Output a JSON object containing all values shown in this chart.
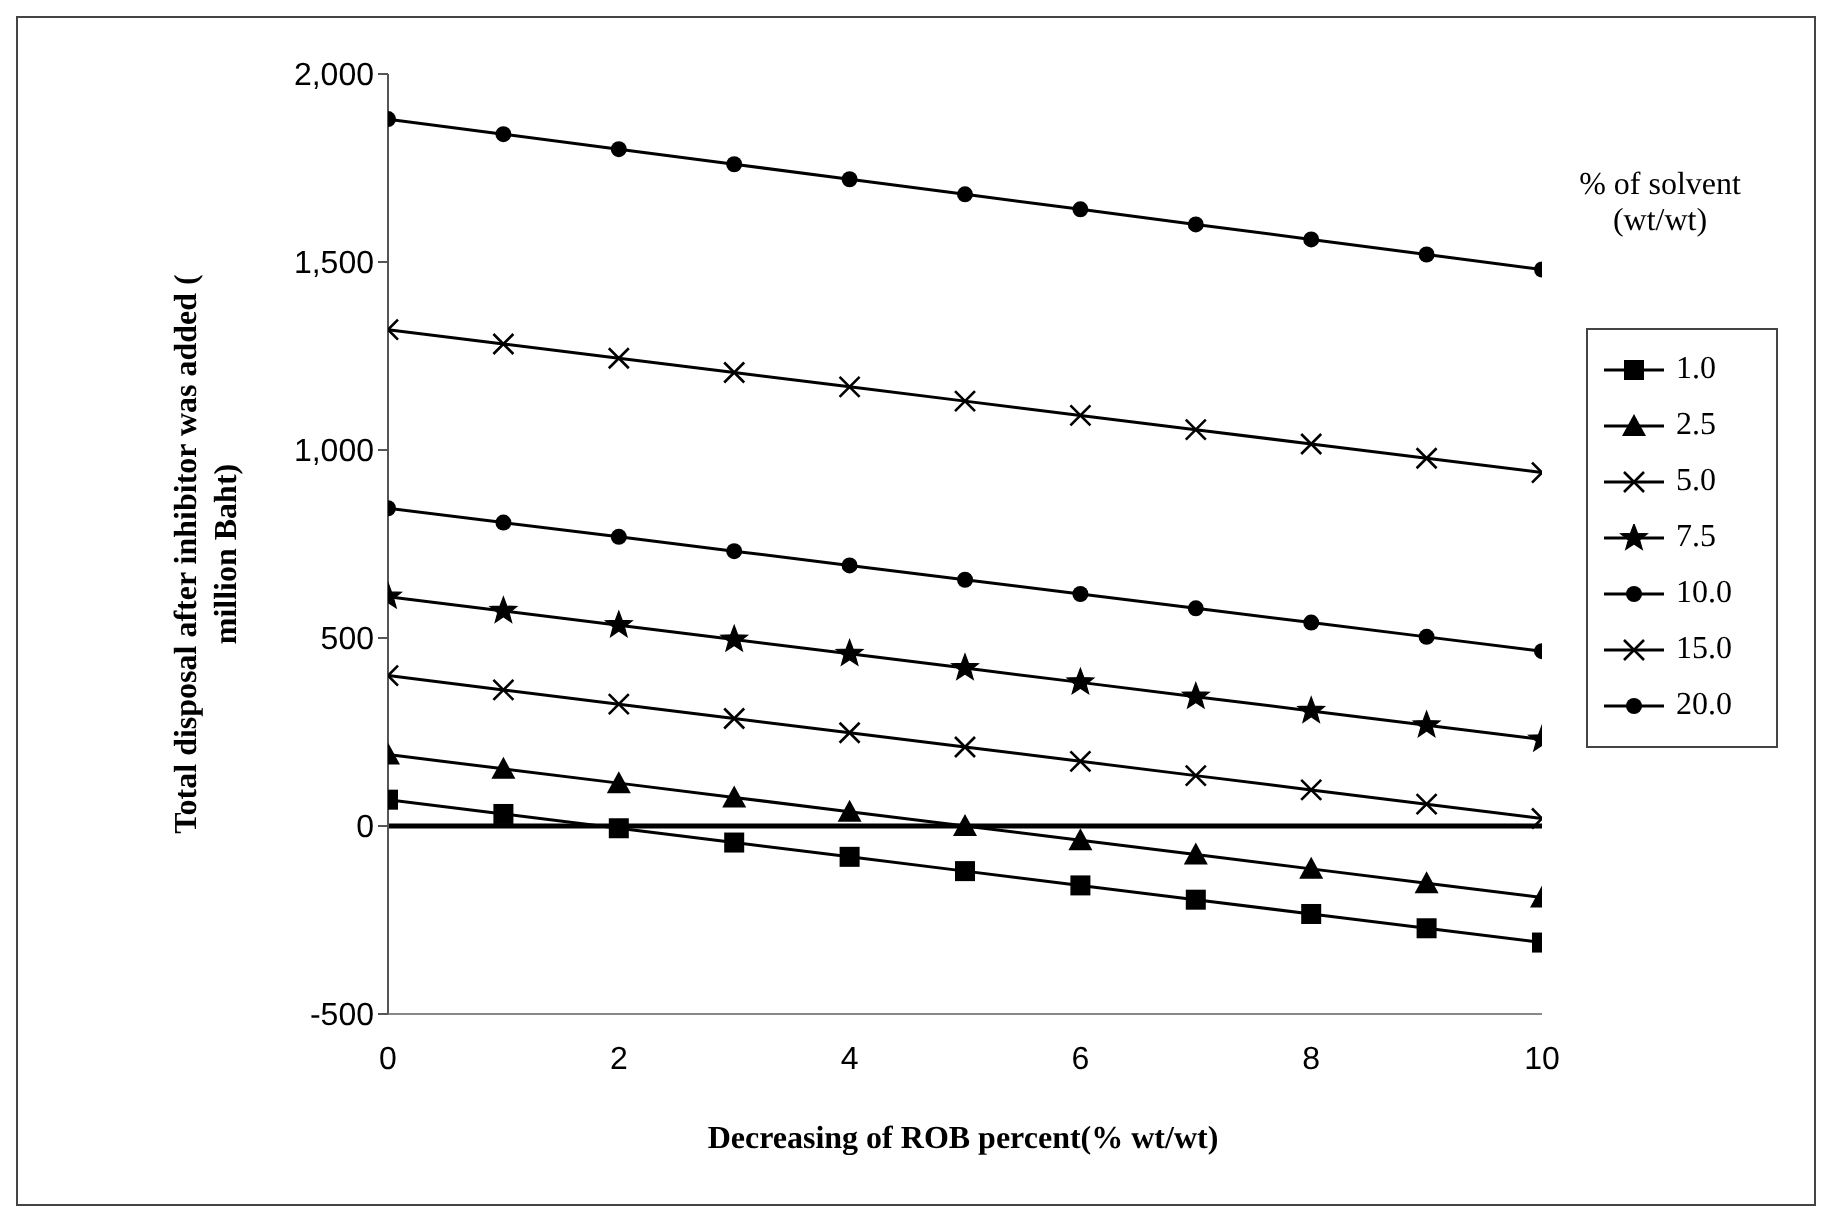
{
  "chart_data": {
    "type": "line",
    "xlabel": "Decreasing of ROB percent(% wt/wt)",
    "ylabel": "Total disposal after inhibitor was added ( million Baht)",
    "legend_title": "% of solvent (wt/wt)",
    "legend": "right",
    "grid": false,
    "x": [
      0,
      1,
      2,
      3,
      4,
      5,
      6,
      7,
      8,
      9,
      10
    ],
    "xlim": [
      0,
      10
    ],
    "xticks": [
      0,
      2,
      4,
      6,
      8,
      10
    ],
    "ylim": [
      -500,
      2000
    ],
    "yticks": [
      -500,
      0,
      500,
      {
        "value": 1000,
        "label": "1,000"
      },
      {
        "value": 1500,
        "label": "1,500"
      },
      {
        "value": 2000,
        "label": "2,000"
      }
    ],
    "ref_lines": [
      {
        "axis": "y",
        "value": 0,
        "color": "#000000"
      }
    ],
    "series": [
      {
        "name": "1.0",
        "color": "#000000",
        "marker": "square",
        "values": [
          70,
          32,
          -6,
          -44,
          -82,
          -120,
          -158,
          -196,
          -234,
          -272,
          -310
        ]
      },
      {
        "name": "2.5",
        "color": "#000000",
        "marker": "triangle",
        "values": [
          190,
          152,
          114,
          76,
          38,
          0,
          -38,
          -76,
          -114,
          -152,
          -190
        ]
      },
      {
        "name": "5.0",
        "color": "#000000",
        "marker": "cross",
        "values": [
          400,
          362,
          324,
          286,
          248,
          210,
          172,
          134,
          96,
          58,
          20
        ]
      },
      {
        "name": "7.5",
        "color": "#000000",
        "marker": "star",
        "values": [
          610,
          572,
          534,
          496,
          458,
          420,
          382,
          344,
          306,
          268,
          230
        ]
      },
      {
        "name": "10.0",
        "color": "#000000",
        "marker": "circle",
        "values": [
          845,
          807,
          769,
          731,
          693,
          655,
          617,
          579,
          541,
          503,
          465
        ]
      },
      {
        "name": "15.0",
        "color": "#000000",
        "marker": "cross",
        "values": [
          1320,
          1282,
          1244,
          1206,
          1168,
          1130,
          1092,
          1054,
          1016,
          978,
          940
        ]
      },
      {
        "name": "20.0",
        "color": "#000000",
        "marker": "circle",
        "values": [
          1880,
          1840,
          1800,
          1760,
          1720,
          1680,
          1640,
          1600,
          1560,
          1520,
          1480
        ]
      }
    ]
  }
}
